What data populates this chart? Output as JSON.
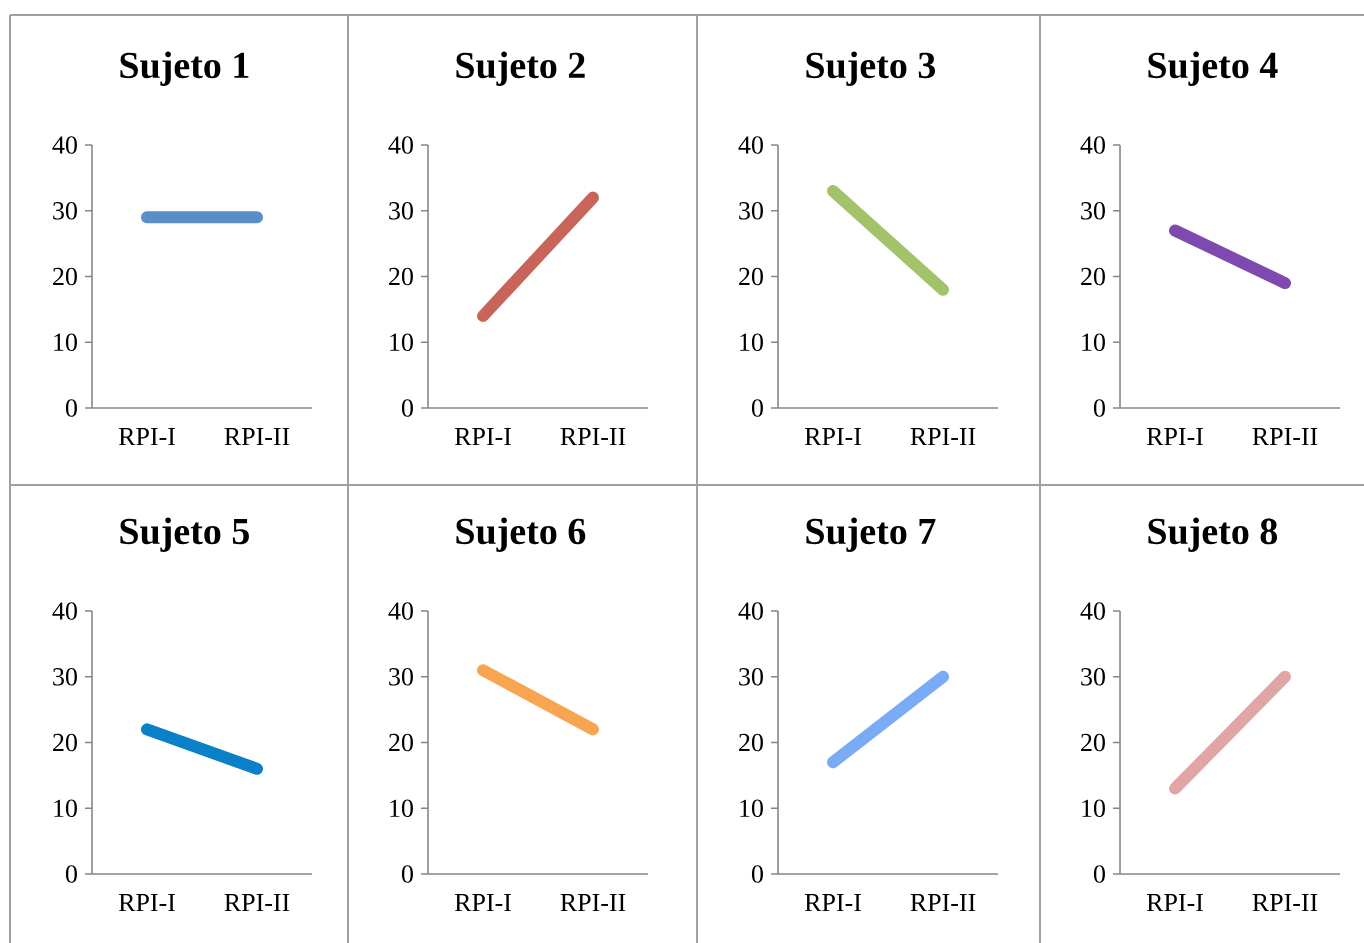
{
  "chart_data": [
    {
      "type": "line",
      "title": "Sujeto 1",
      "categories": [
        "RPI-I",
        "RPI-II"
      ],
      "series": [
        {
          "color": "#5b8ec9",
          "values": [
            29,
            29
          ]
        }
      ],
      "ylim": [
        0,
        40
      ],
      "yticks": [
        0,
        10,
        20,
        30,
        40
      ]
    },
    {
      "type": "line",
      "title": "Sujeto 2",
      "categories": [
        "RPI-I",
        "RPI-II"
      ],
      "series": [
        {
          "color": "#c9645a",
          "values": [
            14,
            32
          ]
        }
      ],
      "ylim": [
        0,
        40
      ],
      "yticks": [
        0,
        10,
        20,
        30,
        40
      ]
    },
    {
      "type": "line",
      "title": "Sujeto 3",
      "categories": [
        "RPI-I",
        "RPI-II"
      ],
      "series": [
        {
          "color": "#a3c36a",
          "values": [
            33,
            18
          ]
        }
      ],
      "ylim": [
        0,
        40
      ],
      "yticks": [
        0,
        10,
        20,
        30,
        40
      ]
    },
    {
      "type": "line",
      "title": "Sujeto 4",
      "categories": [
        "RPI-I",
        "RPI-II"
      ],
      "series": [
        {
          "color": "#7e4ab0",
          "values": [
            27,
            19
          ]
        }
      ],
      "ylim": [
        0,
        40
      ],
      "yticks": [
        0,
        10,
        20,
        30,
        40
      ]
    },
    {
      "type": "line",
      "title": "Sujeto 5",
      "categories": [
        "RPI-I",
        "RPI-II"
      ],
      "series": [
        {
          "color": "#0a80c8",
          "values": [
            22,
            16
          ]
        }
      ],
      "ylim": [
        0,
        40
      ],
      "yticks": [
        0,
        10,
        20,
        30,
        40
      ]
    },
    {
      "type": "line",
      "title": "Sujeto 6",
      "categories": [
        "RPI-I",
        "RPI-II"
      ],
      "series": [
        {
          "color": "#f8a552",
          "values": [
            31,
            22
          ]
        }
      ],
      "ylim": [
        0,
        40
      ],
      "yticks": [
        0,
        10,
        20,
        30,
        40
      ]
    },
    {
      "type": "line",
      "title": "Sujeto 7",
      "categories": [
        "RPI-I",
        "RPI-II"
      ],
      "series": [
        {
          "color": "#7aabf5",
          "values": [
            17,
            30
          ]
        }
      ],
      "ylim": [
        0,
        40
      ],
      "yticks": [
        0,
        10,
        20,
        30,
        40
      ]
    },
    {
      "type": "line",
      "title": "Sujeto 8",
      "categories": [
        "RPI-I",
        "RPI-II"
      ],
      "series": [
        {
          "color": "#e0a5a5",
          "values": [
            13,
            30
          ]
        }
      ],
      "ylim": [
        0,
        40
      ],
      "yticks": [
        0,
        10,
        20,
        30,
        40
      ]
    }
  ]
}
